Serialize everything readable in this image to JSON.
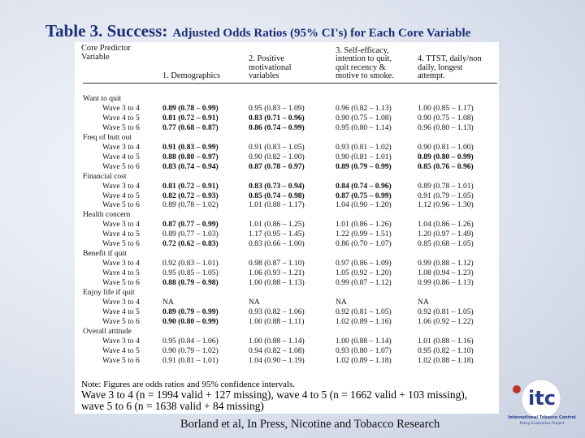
{
  "header": {
    "title_main": "Table 3.  Success:",
    "title_sub": "Adjusted Odds Ratios (95% CI's) for Each Core Variable"
  },
  "table": {
    "columns": [
      [
        "Core Predictor",
        "Variable"
      ],
      [
        "1. Demographics"
      ],
      [
        "2. Positive",
        "motivational",
        "variables"
      ],
      [
        "3. Self-efficacy,",
        "intention to quit,",
        "quit recency &",
        "motive to smoke."
      ],
      [
        "4. TTST, daily/non",
        "daily, longest",
        "attempt."
      ]
    ],
    "groups": [
      {
        "label": "Want to quit",
        "rows": [
          {
            "label": "Wave 3 to 4",
            "cells": [
              "0.89 (0.78 – 0.99)",
              "0.95 (0.83 – 1.09)",
              "0.96 (0.82 – 1.13)",
              "1.00 (0.85 – 1.17)"
            ],
            "bold": [
              true,
              false,
              false,
              false
            ]
          },
          {
            "label": "Wave 4 to 5",
            "cells": [
              "0.81 (0.72 – 0.91)",
              "0.83 (0.71 – 0.96)",
              "0.90 (0.75 – 1.08)",
              "0.90 (0.75 – 1.08)"
            ],
            "bold": [
              true,
              true,
              false,
              false
            ]
          },
          {
            "label": "Wave 5 to 6",
            "cells": [
              "0.77 (0.68 – 0.87)",
              "0.86 (0.74 – 0.99)",
              "0.95 (0.80 – 1.14)",
              "0.96 (0.80 – 1.13)"
            ],
            "bold": [
              true,
              true,
              false,
              false
            ]
          }
        ]
      },
      {
        "label": "Freq of butt out",
        "rows": [
          {
            "label": "Wave 3 to 4",
            "cells": [
              "0.91 (0.83 – 0.99)",
              "0.91 (0.83 – 1.05)",
              "0.93 (0.81 – 1.02)",
              "0.90 (0.81 – 1.00)"
            ],
            "bold": [
              true,
              false,
              false,
              false
            ]
          },
          {
            "label": "Wave 4 to 5",
            "cells": [
              "0.88 (0.80 – 0.97)",
              "0.90 (0.82 – 1.00)",
              "0.90 (0.81 – 1.01)",
              "0.89 (0.80 – 0.99)"
            ],
            "bold": [
              true,
              false,
              false,
              true
            ]
          },
          {
            "label": "Wave 5 to 6",
            "cells": [
              "0.83 (0.74 – 0.94)",
              "0.87 (0.78 – 0.97)",
              "0.89 (0.79 – 0.99)",
              "0.85 (0.76 – 0.96)"
            ],
            "bold": [
              true,
              true,
              true,
              true
            ]
          }
        ]
      },
      {
        "label": "Financial cost",
        "rows": [
          {
            "label": "Wave 3 to 4",
            "cells": [
              "0.81 (0.72 – 0.91)",
              "0.83 (0.73 – 0.94)",
              "0.84 (0.74 – 0.96)",
              "0.89 (0.78 – 1.01)"
            ],
            "bold": [
              true,
              true,
              true,
              false
            ]
          },
          {
            "label": "Wave 4 to 5",
            "cells": [
              "0.82 (0.72 – 0.93)",
              "0.85 (0.74 – 0.98)",
              "0.87 (0.75 – 0.99)",
              "0.91 (0.79 – 1.05)"
            ],
            "bold": [
              true,
              true,
              true,
              false
            ]
          },
          {
            "label": "Wave 5 to 6",
            "cells": [
              "0.89 (0.78 – 1.02)",
              "1.01 (0.88 – 1.17)",
              "1.04 (0.90 – 1.20)",
              "1.12 (0.96 – 1.30)"
            ],
            "bold": [
              false,
              false,
              false,
              false
            ]
          }
        ]
      },
      {
        "label": "Health concern",
        "rows": [
          {
            "label": "Wave 3 to 4",
            "cells": [
              "0.87 (0.77 – 0.99)",
              "1.01 (0.86 – 1.25)",
              "1.01 (0.86 – 1.26)",
              "1.04 (0.86 – 1.26)"
            ],
            "bold": [
              true,
              false,
              false,
              false
            ]
          },
          {
            "label": "Wave 4 to 5",
            "cells": [
              "0.89 (0.77 – 1.03)",
              "1.17 (0.95 – 1.45)",
              "1.22 (0.99 – 1.51)",
              "1.20 (0.97 – 1.49)"
            ],
            "bold": [
              false,
              false,
              false,
              false
            ]
          },
          {
            "label": "Wave 5 to 6",
            "cells": [
              "0.72 (0.62 – 0.83)",
              "0.83 (0.66 – 1.00)",
              "0.86 (0.70 – 1.07)",
              "0.85 (0.68 – 1.05)"
            ],
            "bold": [
              true,
              false,
              false,
              false
            ]
          }
        ]
      },
      {
        "label": "Benefit if quit",
        "rows": [
          {
            "label": "Wave 3 to 4",
            "cells": [
              "0.92 (0.83 – 1.01)",
              "0.98 (0.87 – 1.10)",
              "0.97 (0.86 – 1.09)",
              "0.99 (0.88 – 1.12)"
            ],
            "bold": [
              false,
              false,
              false,
              false
            ]
          },
          {
            "label": "Wave 4 to 5",
            "cells": [
              "0.95 (0.85 – 1.05)",
              "1.06 (0.93 – 1.21)",
              "1.05 (0.92 – 1.20)",
              "1.08 (0.94 – 1.23)"
            ],
            "bold": [
              false,
              false,
              false,
              false
            ]
          },
          {
            "label": "Wave 5 to 6",
            "cells": [
              "0.88 (0.79 – 0.98)",
              "1.00 (0.88 – 1.13)",
              "0.99 (0.87 – 1.12)",
              "0.99 (0.86 – 1.13)"
            ],
            "bold": [
              true,
              false,
              false,
              false
            ]
          }
        ]
      },
      {
        "label": "Enjoy life if quit",
        "rows": [
          {
            "label": "Wave 3 to 4",
            "cells": [
              "NA",
              "NA",
              "NA",
              "NA"
            ],
            "bold": [
              false,
              false,
              false,
              false
            ]
          },
          {
            "label": "Wave 4 to 5",
            "cells": [
              "0.89 (0.79 – 0.99)",
              "0.93 (0.82 – 1.06)",
              "0.92 (0.81 – 1.05)",
              "0.92 (0.81 – 1.05)"
            ],
            "bold": [
              true,
              false,
              false,
              false
            ]
          },
          {
            "label": "Wave 5 to 6",
            "cells": [
              "0.90 (0.80 – 0.99)",
              "1.00 (0.88 – 1.11)",
              "1.02 (0.89 – 1.16)",
              "1.06 (0.92 – 1.22)"
            ],
            "bold": [
              true,
              false,
              false,
              false
            ]
          }
        ]
      },
      {
        "label": "Overall attitude",
        "rows": [
          {
            "label": "Wave 3 to 4",
            "cells": [
              "0.95 (0.84 – 1.06)",
              "1.00 (0.88 – 1.14)",
              "1.00 (0.88 – 1.14)",
              "1.01 (0.88 – 1.16)"
            ],
            "bold": [
              false,
              false,
              false,
              false
            ]
          },
          {
            "label": "Wave 4 to 5",
            "cells": [
              "0.90 (0.79 – 1.02)",
              "0.94 (0.82 – 1.08)",
              "0.93 (0.80 – 1.07)",
              "0.95 (0.82 – 1.10)"
            ],
            "bold": [
              false,
              false,
              false,
              false
            ]
          },
          {
            "label": "Wave 5 to 6",
            "cells": [
              "0.91 (0.81 – 1.01)",
              "1.04 (0.90 – 1.19)",
              "1.02 (0.89 – 1.18)",
              "1.02 (0.88 – 1.18)"
            ],
            "bold": [
              false,
              false,
              false,
              false
            ]
          }
        ]
      }
    ]
  },
  "note": {
    "line1": "Note: Figures are odds ratios and 95% confidence intervals.",
    "line2": "Wave 3 to 4 (n = 1994 valid + 127 missing), wave 4 to 5 (n = 1662 valid + 103 missing), wave 5 to 6 (n = 1638 valid + 84 missing)"
  },
  "footer": {
    "citation": "Borland et al, In Press, Nicotine and Tobacco Research"
  },
  "logo": {
    "mark": "itc",
    "name": "International Tobacco Control",
    "tagline": "Policy Evaluation Project"
  }
}
